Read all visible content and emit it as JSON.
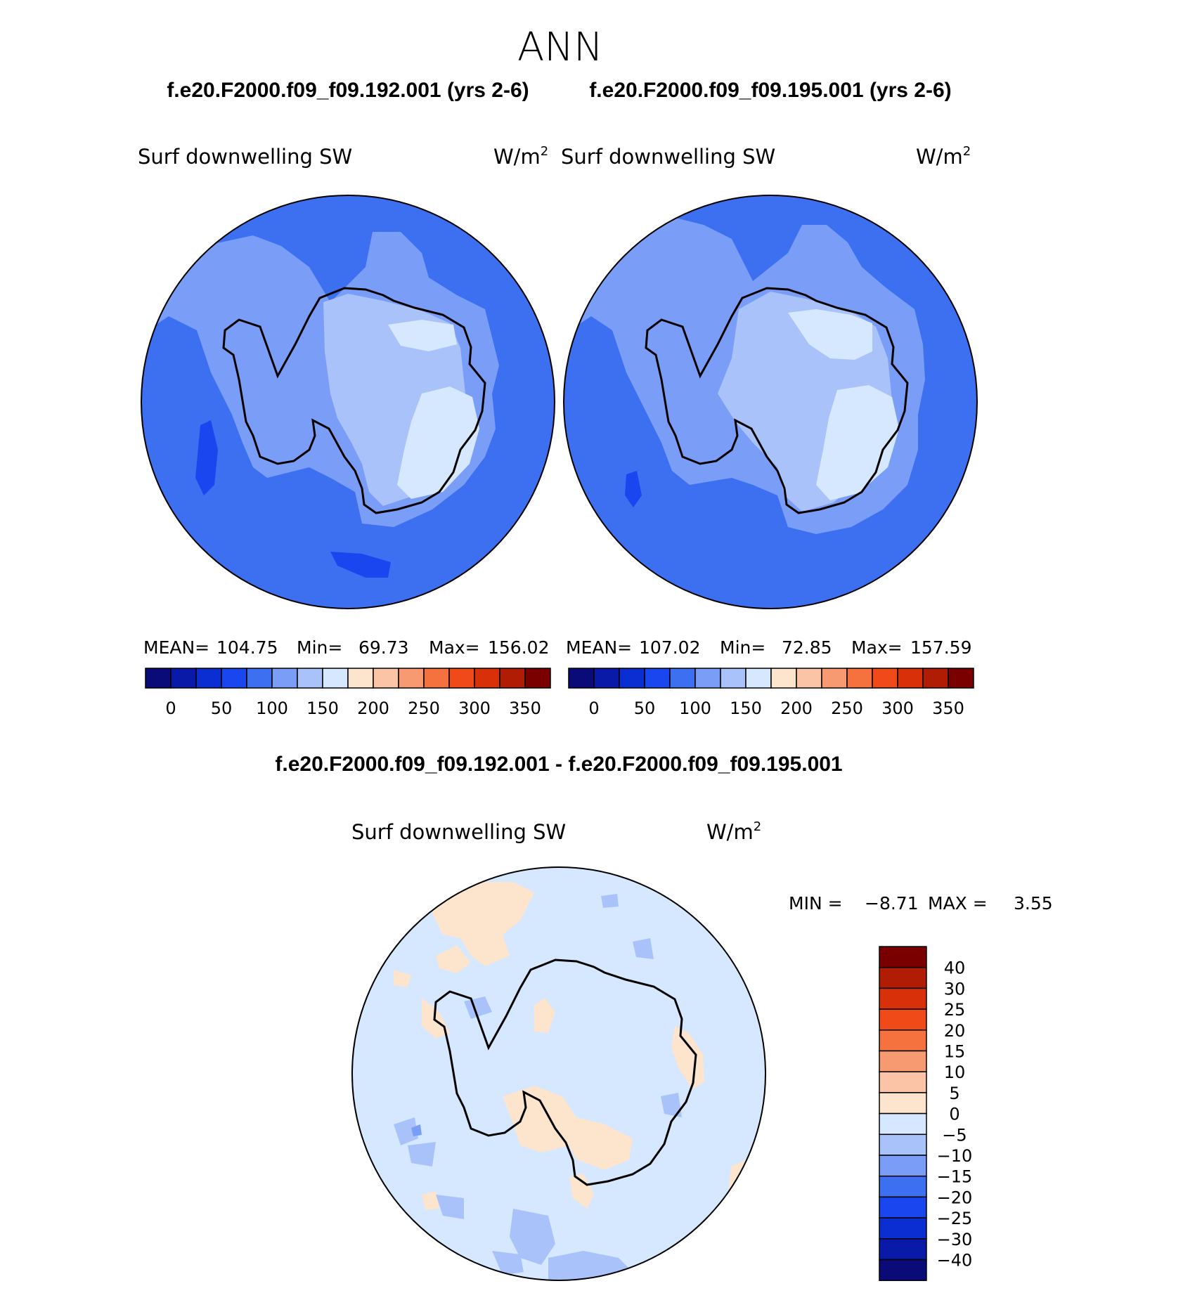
{
  "page": {
    "title": "ANN",
    "case_a": "f.e20.F2000.f09_f09.192.001 (yrs 2-6)",
    "case_b": "f.e20.F2000.f09_f09.195.001 (yrs 2-6)",
    "diff_title": "f.e20.F2000.f09_f09.192.001 - f.e20.F2000.f09_f09.195.001"
  },
  "panels": [
    {
      "variable": "Surf downwelling SW",
      "units": "W/m",
      "units_sup": "2",
      "stats": {
        "mean_label": "MEAN=",
        "mean": "104.75",
        "min_label": "Min=",
        "min": "69.73",
        "max_label": "Max=",
        "max": "156.02"
      },
      "ice_low": {
        "color": "#d6e8ff"
      },
      "blue_blobs": true
    },
    {
      "variable": "Surf downwelling SW",
      "units": "W/m",
      "units_sup": "2",
      "stats": {
        "mean_label": "MEAN=",
        "mean": "107.02",
        "min_label": "Min=",
        "min": "72.85",
        "max_label": "Max=",
        "max": "157.59"
      },
      "ice_low": {
        "color": "#d6e8ff"
      },
      "blue_blobs": false
    }
  ],
  "abs_colorbar": {
    "colors": [
      "#0a0a78",
      "#0a1aa8",
      "#0a2ed2",
      "#1a46f0",
      "#3c70f0",
      "#7a9ef8",
      "#a9c2fa",
      "#d6e8ff",
      "#fde4cc",
      "#fbc4a6",
      "#f79a72",
      "#f5723e",
      "#f04a18",
      "#d83008",
      "#b01d04",
      "#7a0000"
    ],
    "tick_labels": [
      "0",
      "50",
      "100",
      "150",
      "200",
      "250",
      "300",
      "350"
    ]
  },
  "diff_panel": {
    "variable": "Surf downwelling SW",
    "units": "W/m",
    "units_sup": "2",
    "min_label": "MIN =",
    "min": "−8.71",
    "max_label": "MAX =",
    "max": "3.55"
  },
  "diff_colorbar": {
    "colors_top_to_bottom": [
      "#7a0000",
      "#b01d04",
      "#d83008",
      "#f04a18",
      "#f5723e",
      "#f79a72",
      "#fbc4a6",
      "#fde4cc",
      "#d6e8ff",
      "#a9c2fa",
      "#7a9ef8",
      "#3c70f0",
      "#1a46f0",
      "#0a2ed2",
      "#0a1aa8",
      "#0a0a78"
    ],
    "tick_labels": [
      "40",
      "30",
      "25",
      "20",
      "15",
      "10",
      "5",
      "0",
      "−5",
      "−10",
      "−15",
      "−20",
      "−25",
      "−30",
      "−40"
    ]
  },
  "colors": {
    "ocean": "#3c70f0",
    "shelf": "#7a9ef8",
    "ice_mid": "#a9c2fa",
    "ice_high": "#d6e8ff",
    "ocean_low": "#1a46f0",
    "diff_background": "#d6e8ff",
    "diff_positive": "#fde4cc",
    "diff_negative": "#a9c2fa",
    "diff_negative_strong": "#7a9ef8"
  }
}
